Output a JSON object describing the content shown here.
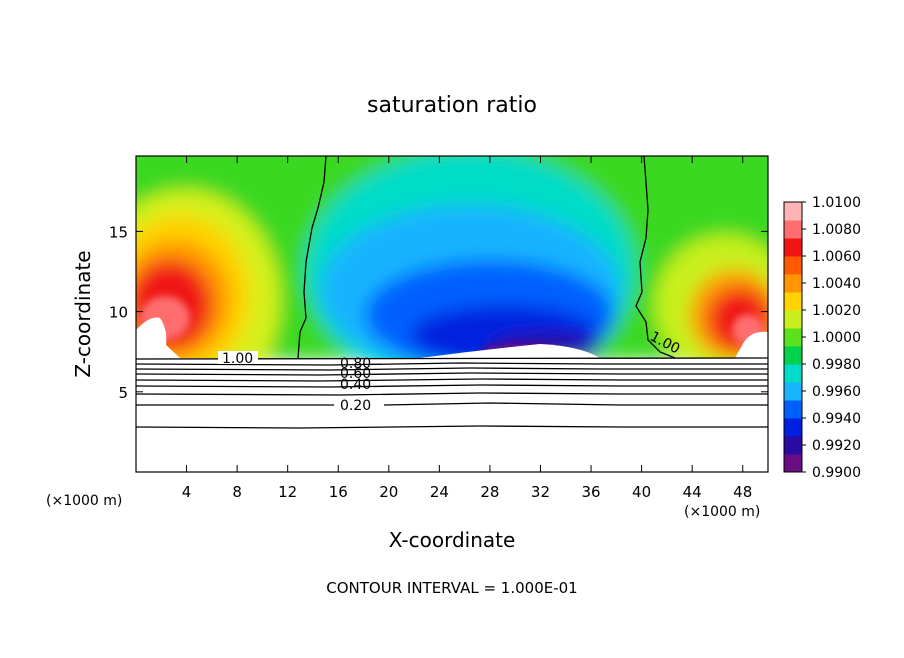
{
  "chart_data": {
    "type": "heatmap",
    "title": "saturation ratio",
    "xlabel": "X-coordinate",
    "ylabel": "Z-coordinate",
    "x_unit_left": "(×1000 m)",
    "x_unit_right": "(×1000 m)",
    "xlim": [
      0,
      50
    ],
    "ylim": [
      0,
      19.7
    ],
    "x_ticks": [
      4,
      8,
      12,
      16,
      20,
      24,
      28,
      32,
      36,
      40,
      44,
      48
    ],
    "y_ticks": [
      5,
      10,
      15
    ],
    "footer": "CONTOUR INTERVAL = 1.000E-01",
    "colorbar": {
      "min": 0.99,
      "max": 1.01,
      "labels": [
        "1.0100",
        "1.0080",
        "1.0060",
        "1.0040",
        "1.0020",
        "1.0000",
        "0.9980",
        "0.9960",
        "0.9940",
        "0.9920",
        "0.9900"
      ],
      "colors": [
        "#6a0d83",
        "#2a0aa0",
        "#0020e0",
        "#0060ff",
        "#19b4ff",
        "#00dcc8",
        "#00d24a",
        "#5ae21c",
        "#c8f01e",
        "#ffd200",
        "#ff9600",
        "#ff5a00",
        "#f01414",
        "#ff6e6e",
        "#ffb4b4"
      ]
    },
    "contours": [
      {
        "label": "1.00",
        "level": 1.0
      },
      {
        "label": "0.80",
        "level": 0.8
      },
      {
        "label": "0.60",
        "level": 0.6
      },
      {
        "label": "0.40",
        "level": 0.4
      },
      {
        "label": "0.20",
        "level": 0.2
      }
    ],
    "cloud_base_z": 7.2
  }
}
